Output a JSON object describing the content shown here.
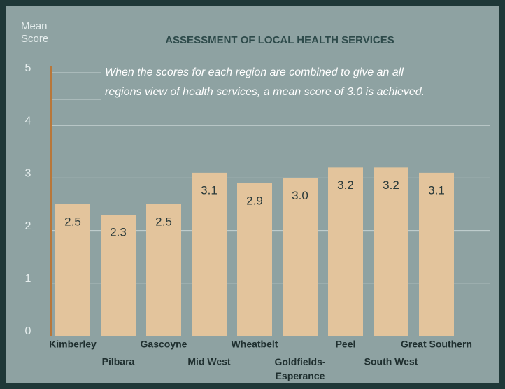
{
  "chart_data": {
    "type": "bar",
    "title": "ASSESSMENT OF LOCAL HEALTH SERVICES",
    "y_label": "Mean\nScore",
    "annotation": "When the scores for each region are combined to give an all\nregions view of health services, a mean score of 3.0 is achieved.",
    "categories": [
      "Kimberley",
      "Pilbara",
      "Gascoyne",
      "Mid West",
      "Wheatbelt",
      "Goldfields-\nEsperance",
      "Peel",
      "South West",
      "Great Southern"
    ],
    "values": [
      2.5,
      2.3,
      2.5,
      3.1,
      2.9,
      3.0,
      3.2,
      3.2,
      3.1
    ],
    "value_labels": [
      "2.5",
      "2.3",
      "2.5",
      "3.1",
      "2.9",
      "3.0",
      "3.2",
      "3.2",
      "3.1"
    ],
    "color": "#e3c49c",
    "ylim": [
      0,
      5
    ],
    "yticks": [
      0,
      1,
      2,
      3,
      4,
      5
    ],
    "grid": true
  }
}
